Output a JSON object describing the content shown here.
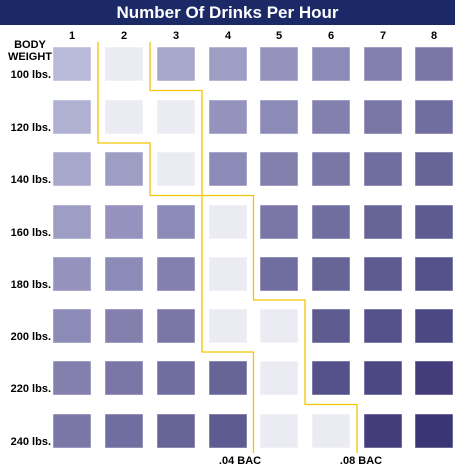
{
  "chart_data": {
    "type": "heatmap",
    "title": "Number Of Drinks Per Hour",
    "corner_label": [
      "BODY",
      "WEIGHT"
    ],
    "x_categories": [
      "1",
      "2",
      "3",
      "4",
      "5",
      "6",
      "7",
      "8"
    ],
    "y_categories": [
      "100 lbs.",
      "120 lbs.",
      "140 lbs.",
      "160 lbs.",
      "180 lbs.",
      "200 lbs.",
      "220 lbs.",
      "240 lbs."
    ],
    "columns_below_04_by_row": [
      1,
      1,
      2,
      3,
      3,
      3,
      4,
      4
    ],
    "columns_below_08_by_row": [
      2,
      3,
      3,
      4,
      4,
      5,
      5,
      6
    ],
    "series": [
      {
        "name": ".04 BAC"
      },
      {
        "name": ".08 BAC"
      }
    ],
    "colors": {
      "title_bg": "#1b2a66",
      "title_text": "#ffffff",
      "cell_light": "#b9b9da",
      "cell_dark": "#3a3574",
      "cell_faded": "#ebebf4",
      "threshold_line": "#f2c500"
    }
  }
}
